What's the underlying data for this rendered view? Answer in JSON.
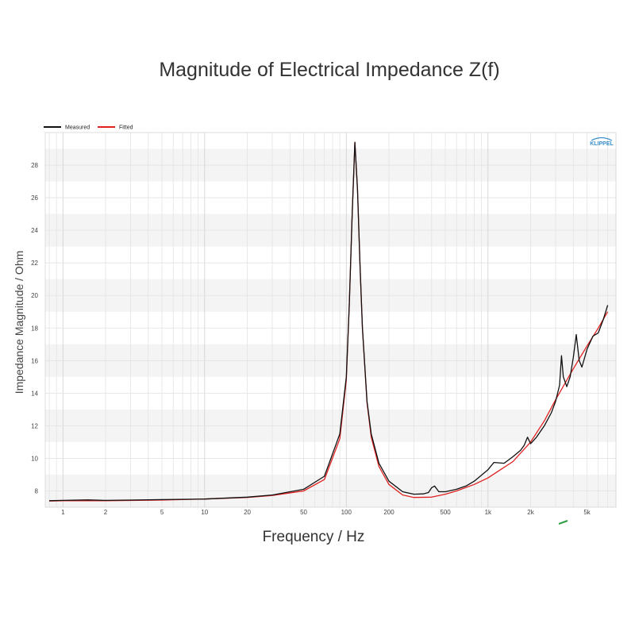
{
  "chart_data": {
    "type": "line",
    "title": "Magnitude of Electrical Impedance Z(f)",
    "xlabel": "Frequency / Hz",
    "ylabel": "Impedance Magnitude / Ohm",
    "x_scale": "log",
    "xlim": [
      0.75,
      8000
    ],
    "ylim": [
      7,
      30
    ],
    "x_ticks": [
      {
        "value": 1,
        "label": "1"
      },
      {
        "value": 2,
        "label": "2"
      },
      {
        "value": 5,
        "label": "5"
      },
      {
        "value": 10,
        "label": "10"
      },
      {
        "value": 20,
        "label": "20"
      },
      {
        "value": 50,
        "label": "50"
      },
      {
        "value": 100,
        "label": "100"
      },
      {
        "value": 200,
        "label": "200"
      },
      {
        "value": 500,
        "label": "500"
      },
      {
        "value": 1000,
        "label": "1k"
      },
      {
        "value": 2000,
        "label": "2k"
      },
      {
        "value": 5000,
        "label": "5k"
      }
    ],
    "y_ticks": [
      8,
      10,
      12,
      14,
      16,
      18,
      20,
      22,
      24,
      26,
      28
    ],
    "grid": true,
    "legend_position": "top-left",
    "watermark": "KLIPPEL",
    "series": [
      {
        "name": "Measured",
        "color": "#111111",
        "x": [
          0.8,
          1,
          1.5,
          2,
          3,
          5,
          10,
          20,
          30,
          50,
          70,
          90,
          100,
          105,
          110,
          115,
          120,
          125,
          130,
          140,
          150,
          170,
          200,
          250,
          300,
          350,
          380,
          400,
          420,
          450,
          500,
          600,
          700,
          800,
          1000,
          1100,
          1300,
          1500,
          1700,
          1800,
          1900,
          2000,
          2200,
          2500,
          2800,
          3000,
          3200,
          3300,
          3400,
          3600,
          3800,
          4000,
          4200,
          4400,
          4600,
          5000,
          5500,
          6000,
          6500,
          7000
        ],
        "y": [
          7.4,
          7.42,
          7.45,
          7.42,
          7.44,
          7.47,
          7.5,
          7.62,
          7.75,
          8.1,
          8.9,
          11.5,
          15.0,
          19.5,
          25.0,
          29.4,
          26.5,
          21.8,
          18.0,
          13.5,
          11.5,
          9.7,
          8.6,
          7.95,
          7.8,
          7.82,
          7.9,
          8.2,
          8.3,
          7.95,
          7.95,
          8.1,
          8.3,
          8.6,
          9.3,
          9.75,
          9.7,
          10.1,
          10.5,
          10.8,
          11.3,
          10.9,
          11.3,
          12.0,
          12.8,
          13.5,
          14.5,
          16.3,
          15.0,
          14.4,
          15.0,
          16.2,
          17.6,
          16.0,
          15.6,
          16.7,
          17.5,
          17.7,
          18.5,
          19.4
        ]
      },
      {
        "name": "Fitted",
        "color": "#e02020",
        "x": [
          0.8,
          1,
          2,
          5,
          10,
          20,
          30,
          50,
          70,
          90,
          100,
          105,
          110,
          115,
          120,
          125,
          130,
          140,
          150,
          170,
          200,
          250,
          300,
          400,
          500,
          600,
          800,
          1000,
          1500,
          2000,
          2500,
          3000,
          4000,
          5000,
          6000,
          7000
        ],
        "y": [
          7.38,
          7.4,
          7.4,
          7.44,
          7.5,
          7.6,
          7.72,
          8.0,
          8.7,
          11.2,
          14.8,
          19.5,
          25.0,
          29.4,
          26.5,
          21.8,
          18.0,
          13.4,
          11.3,
          9.5,
          8.4,
          7.75,
          7.6,
          7.62,
          7.8,
          8.0,
          8.4,
          8.8,
          9.8,
          11.0,
          12.3,
          13.6,
          15.5,
          16.9,
          18.0,
          19.0
        ]
      }
    ]
  }
}
